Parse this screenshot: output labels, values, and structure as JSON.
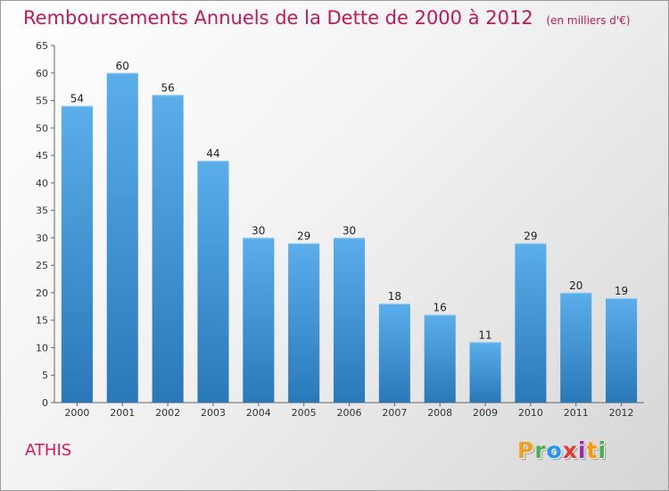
{
  "chart_data": {
    "type": "bar",
    "title": "Remboursements Annuels de la Dette de 2000 à 2012",
    "subtitle": "(en milliers d'€)",
    "categories": [
      "2000",
      "2001",
      "2002",
      "2003",
      "2004",
      "2005",
      "2006",
      "2007",
      "2008",
      "2009",
      "2010",
      "2011",
      "2012"
    ],
    "values": [
      54,
      60,
      56,
      44,
      30,
      29,
      30,
      18,
      16,
      11,
      29,
      20,
      19
    ],
    "ylim": [
      0,
      65
    ],
    "yticks": [
      0,
      5,
      10,
      15,
      20,
      25,
      30,
      35,
      40,
      45,
      50,
      55,
      60,
      65
    ],
    "xlabel": "",
    "ylabel": "",
    "grid": false,
    "bar_color_top": "#5aaeea",
    "bar_color_bottom": "#2a78b8"
  },
  "commune": "ATHIS",
  "logo": {
    "letters": [
      "P",
      "r",
      "o",
      "x",
      "i",
      "t",
      "i"
    ],
    "colors": [
      "#f0a020",
      "#4caf50",
      "#2196f3",
      "#e53935",
      "#9c27b0",
      "#ff9800",
      "#4caf50"
    ]
  }
}
